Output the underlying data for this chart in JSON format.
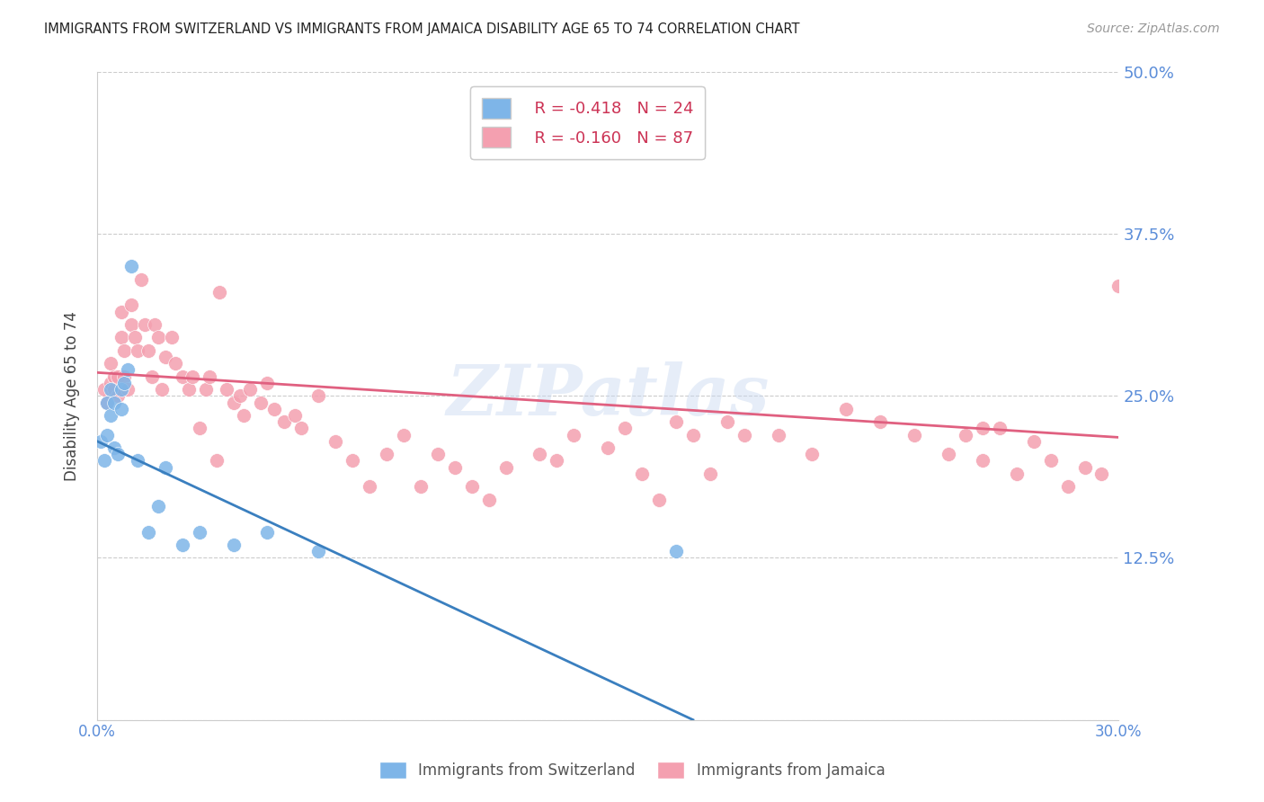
{
  "title": "IMMIGRANTS FROM SWITZERLAND VS IMMIGRANTS FROM JAMAICA DISABILITY AGE 65 TO 74 CORRELATION CHART",
  "source": "Source: ZipAtlas.com",
  "ylabel": "Disability Age 65 to 74",
  "xmin": 0.0,
  "xmax": 0.3,
  "ymin": 0.0,
  "ymax": 0.5,
  "watermark": "ZIPatlas",
  "legend_r1": "R = -0.418",
  "legend_n1": "N = 24",
  "legend_r2": "R = -0.160",
  "legend_n2": "N = 87",
  "color_swiss": "#7EB5E8",
  "color_jamaica": "#F4A0B0",
  "color_swiss_line": "#3A7FBF",
  "color_jamaica_line": "#E06080",
  "color_label": "#5B8DD9",
  "swiss_x": [
    0.001,
    0.002,
    0.003,
    0.003,
    0.004,
    0.004,
    0.005,
    0.005,
    0.006,
    0.007,
    0.007,
    0.008,
    0.009,
    0.01,
    0.012,
    0.015,
    0.018,
    0.02,
    0.025,
    0.03,
    0.04,
    0.05,
    0.065,
    0.17
  ],
  "swiss_y": [
    0.215,
    0.2,
    0.245,
    0.22,
    0.255,
    0.235,
    0.245,
    0.21,
    0.205,
    0.255,
    0.24,
    0.26,
    0.27,
    0.35,
    0.2,
    0.145,
    0.165,
    0.195,
    0.135,
    0.145,
    0.135,
    0.145,
    0.13,
    0.13
  ],
  "jamaica_x": [
    0.002,
    0.003,
    0.004,
    0.004,
    0.005,
    0.005,
    0.006,
    0.006,
    0.007,
    0.007,
    0.008,
    0.008,
    0.009,
    0.01,
    0.01,
    0.011,
    0.012,
    0.013,
    0.014,
    0.015,
    0.016,
    0.017,
    0.018,
    0.019,
    0.02,
    0.022,
    0.023,
    0.025,
    0.027,
    0.028,
    0.03,
    0.032,
    0.033,
    0.035,
    0.036,
    0.038,
    0.04,
    0.042,
    0.043,
    0.045,
    0.048,
    0.05,
    0.052,
    0.055,
    0.058,
    0.06,
    0.065,
    0.07,
    0.075,
    0.08,
    0.085,
    0.09,
    0.095,
    0.1,
    0.105,
    0.11,
    0.115,
    0.12,
    0.13,
    0.135,
    0.14,
    0.15,
    0.155,
    0.16,
    0.165,
    0.17,
    0.175,
    0.18,
    0.185,
    0.19,
    0.2,
    0.21,
    0.22,
    0.23,
    0.24,
    0.25,
    0.255,
    0.26,
    0.265,
    0.27,
    0.275,
    0.28,
    0.285,
    0.29,
    0.295,
    0.26,
    0.3
  ],
  "jamaica_y": [
    0.255,
    0.245,
    0.26,
    0.275,
    0.265,
    0.255,
    0.265,
    0.25,
    0.295,
    0.315,
    0.285,
    0.265,
    0.255,
    0.305,
    0.32,
    0.295,
    0.285,
    0.34,
    0.305,
    0.285,
    0.265,
    0.305,
    0.295,
    0.255,
    0.28,
    0.295,
    0.275,
    0.265,
    0.255,
    0.265,
    0.225,
    0.255,
    0.265,
    0.2,
    0.33,
    0.255,
    0.245,
    0.25,
    0.235,
    0.255,
    0.245,
    0.26,
    0.24,
    0.23,
    0.235,
    0.225,
    0.25,
    0.215,
    0.2,
    0.18,
    0.205,
    0.22,
    0.18,
    0.205,
    0.195,
    0.18,
    0.17,
    0.195,
    0.205,
    0.2,
    0.22,
    0.21,
    0.225,
    0.19,
    0.17,
    0.23,
    0.22,
    0.19,
    0.23,
    0.22,
    0.22,
    0.205,
    0.24,
    0.23,
    0.22,
    0.205,
    0.22,
    0.2,
    0.225,
    0.19,
    0.215,
    0.2,
    0.18,
    0.195,
    0.19,
    0.225,
    0.335
  ],
  "swiss_line_x": [
    0.0,
    0.175
  ],
  "swiss_line_y": [
    0.215,
    0.0
  ],
  "jamaica_line_x": [
    0.0,
    0.3
  ],
  "jamaica_line_y": [
    0.268,
    0.218
  ]
}
